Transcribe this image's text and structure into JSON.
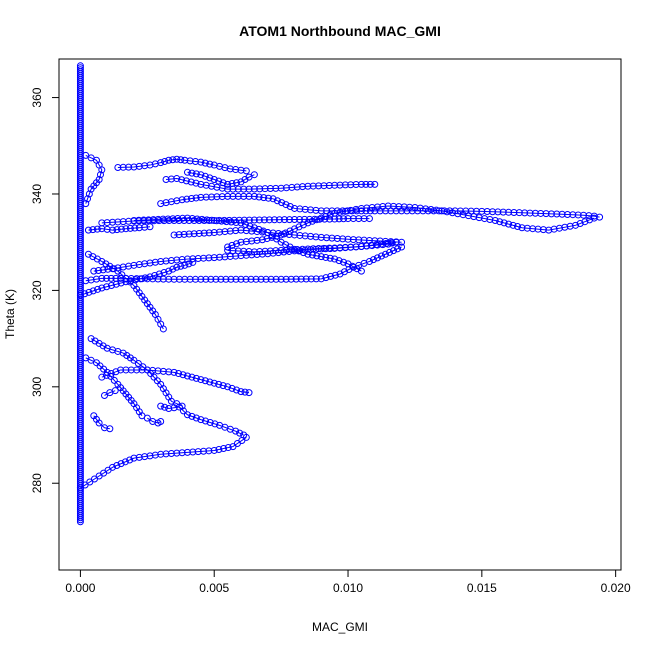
{
  "chart_data": {
    "type": "scatter",
    "title": "ATOM1 Northbound MAC_GMI",
    "xlabel": "MAC_GMI",
    "ylabel": "Theta (K)",
    "xlim": [
      -0.0008,
      0.0202
    ],
    "ylim": [
      262,
      368
    ],
    "x_ticks": [
      0.0,
      0.005,
      0.01,
      0.015,
      0.02
    ],
    "x_tick_labels": [
      "0.000",
      "0.005",
      "0.010",
      "0.015",
      "0.020"
    ],
    "y_ticks": [
      280,
      300,
      320,
      340,
      360
    ],
    "y_tick_labels": [
      "280",
      "300",
      "320",
      "340",
      "360"
    ],
    "grid": false,
    "legend": "none",
    "marker": "open-circle",
    "connect_points": true,
    "color": "#0000ff",
    "baseline_column": {
      "x": 0.0,
      "y_range": [
        272,
        367
      ]
    },
    "series": [
      {
        "x": [
          0.0,
          0.0007,
          0.0012,
          0.002,
          0.003,
          0.004,
          0.005,
          0.0057,
          0.0062
        ],
        "y": [
          279,
          281.5,
          283.3,
          285.2,
          286.0,
          286.4,
          286.8,
          287.6,
          289.5
        ]
      },
      {
        "x": [
          0.0008,
          0.0015,
          0.0025,
          0.0035,
          0.0045,
          0.0055,
          0.006,
          0.0063
        ],
        "y": [
          302.0,
          303.5,
          303.5,
          303.0,
          301.5,
          300.0,
          299.0,
          298.8
        ]
      },
      {
        "x": [
          0.0009,
          0.0011,
          0.0013
        ],
        "y": [
          298.2,
          298.8,
          299.2
        ]
      },
      {
        "x": [
          0.003,
          0.0033,
          0.0037,
          0.004,
          0.0045,
          0.0052,
          0.0058,
          0.0061
        ],
        "y": [
          296.0,
          295.5,
          295.8,
          294.2,
          293.2,
          292.0,
          290.8,
          290.0
        ]
      },
      {
        "x": [
          0.0025,
          0.0027,
          0.0029,
          0.003
        ],
        "y": [
          293.5,
          292.8,
          292.5,
          292.8
        ]
      },
      {
        "x": [
          0.0005,
          0.0007,
          0.0009,
          0.0011
        ],
        "y": [
          294.0,
          292.5,
          291.5,
          291.3
        ]
      },
      {
        "x": [
          0.0002,
          0.0008,
          0.0015,
          0.0025,
          0.0035,
          0.0045,
          0.006,
          0.0075,
          0.009,
          0.0097,
          0.0102,
          0.0108,
          0.0114,
          0.012
        ],
        "y": [
          322.0,
          322.5,
          322.5,
          322.4,
          322.3,
          322.3,
          322.3,
          322.3,
          322.4,
          323.4,
          324.8,
          326.0,
          327.5,
          329.0
        ]
      },
      {
        "x": [
          0.0,
          0.0008,
          0.0017,
          0.0026,
          0.0033,
          0.0036,
          0.0039,
          0.0042
        ],
        "y": [
          319.0,
          320.5,
          321.8,
          322.8,
          324.0,
          324.8,
          325.2,
          325.8
        ]
      },
      {
        "x": [
          0.0005,
          0.0012,
          0.002,
          0.003,
          0.004,
          0.005,
          0.006,
          0.007,
          0.008,
          0.009,
          0.0095,
          0.0105,
          0.0115,
          0.0118
        ],
        "y": [
          324.0,
          324.5,
          325.2,
          326.0,
          326.5,
          326.8,
          327.2,
          327.6,
          328.2,
          328.6,
          328.7,
          329.1,
          329.6,
          330.0
        ]
      },
      {
        "x": [
          0.0055,
          0.0065,
          0.0075,
          0.0085,
          0.0095,
          0.0105,
          0.0118
        ],
        "y": [
          328.3,
          328.0,
          328.3,
          328.6,
          328.8,
          329.1,
          330.0
        ]
      },
      {
        "x": [
          0.0035,
          0.005,
          0.006,
          0.007,
          0.008,
          0.009,
          0.01,
          0.011,
          0.012
        ],
        "y": [
          331.5,
          332.0,
          332.5,
          332.0,
          331.5,
          331.0,
          330.6,
          330.3,
          330.0
        ]
      },
      {
        "x": [
          0.002,
          0.004,
          0.006,
          0.007,
          0.0075,
          0.008,
          0.0085,
          0.009,
          0.0095,
          0.01,
          0.0105
        ],
        "y": [
          334.5,
          335.0,
          334.0,
          332.0,
          330.0,
          328.5,
          327.5,
          327.0,
          326.5,
          325.5,
          324.0
        ]
      },
      {
        "x": [
          0.0008,
          0.002,
          0.0035,
          0.005,
          0.0065,
          0.008,
          0.0095,
          0.01,
          0.0108
        ],
        "y": [
          334.0,
          334.4,
          334.5,
          334.5,
          334.6,
          334.7,
          334.8,
          334.9,
          334.9
        ]
      },
      {
        "x": [
          0.003,
          0.0038,
          0.0045,
          0.0055,
          0.0065,
          0.0072,
          0.008,
          0.009,
          0.0098,
          0.0105,
          0.011,
          0.012,
          0.013,
          0.014,
          0.015,
          0.016,
          0.017,
          0.018,
          0.0188,
          0.0192,
          0.0194
        ],
        "y": [
          338.0,
          338.8,
          339.3,
          339.5,
          339.5,
          339.0,
          337.0,
          336.5,
          336.5,
          336.5,
          336.5,
          336.5,
          336.5,
          336.5,
          336.4,
          336.2,
          336.0,
          335.8,
          335.6,
          335.4,
          335.2
        ]
      },
      {
        "x": [
          0.0055,
          0.006,
          0.0068,
          0.0075,
          0.0085,
          0.0095,
          0.0105,
          0.0115,
          0.0125,
          0.0135,
          0.0145,
          0.0155,
          0.0165,
          0.0175,
          0.0185,
          0.0192
        ],
        "y": [
          329.0,
          330.0,
          330.5,
          331.5,
          334.0,
          336.0,
          337.0,
          337.5,
          337.2,
          336.5,
          335.5,
          334.5,
          333.0,
          332.5,
          333.5,
          335.0
        ]
      },
      {
        "x": [
          0.0032,
          0.0036,
          0.0045,
          0.0055,
          0.0063,
          0.0075,
          0.0085,
          0.0095,
          0.0105,
          0.011
        ],
        "y": [
          343.0,
          343.2,
          342.0,
          341.0,
          341.0,
          341.2,
          341.6,
          341.8,
          342.0,
          342.0
        ]
      },
      {
        "x": [
          0.004,
          0.0045,
          0.005,
          0.0055,
          0.006,
          0.0063,
          0.0065
        ],
        "y": [
          344.5,
          344.0,
          343.0,
          342.0,
          342.5,
          343.5,
          344.0
        ]
      },
      {
        "x": [
          0.0014,
          0.002,
          0.0026,
          0.003,
          0.0033,
          0.0036,
          0.0039,
          0.0045,
          0.005,
          0.0056,
          0.0062
        ],
        "y": [
          345.5,
          345.6,
          346.0,
          346.5,
          347.0,
          347.2,
          347.0,
          346.6,
          346.0,
          345.2,
          344.8
        ]
      },
      {
        "x": [
          0.0002,
          0.0006,
          0.0008,
          0.0007,
          0.0004,
          0.0002
        ],
        "y": [
          348.0,
          347.0,
          345.0,
          343.0,
          341.0,
          338.0
        ]
      },
      {
        "x": [
          0.0003,
          0.0008,
          0.0012,
          0.0017,
          0.0022,
          0.0026
        ],
        "y": [
          332.5,
          332.8,
          332.5,
          332.8,
          333.0,
          333.2
        ]
      },
      {
        "x": [
          0.0003,
          0.0008,
          0.0014,
          0.002,
          0.0024,
          0.0028,
          0.0031
        ],
        "y": [
          327.5,
          326.0,
          324.0,
          321.0,
          318.0,
          315.0,
          312.0
        ]
      },
      {
        "x": [
          0.0004,
          0.001,
          0.0016,
          0.002,
          0.0025,
          0.003,
          0.0034,
          0.0038
        ],
        "y": [
          310.0,
          308.0,
          307.0,
          305.5,
          303.5,
          300.5,
          297.0,
          296.0
        ]
      },
      {
        "x": [
          0.0002,
          0.0006,
          0.001,
          0.0014,
          0.0017,
          0.002,
          0.0023
        ],
        "y": [
          306.0,
          305.0,
          303.0,
          300.5,
          298.5,
          296.5,
          294.0
        ]
      }
    ]
  }
}
